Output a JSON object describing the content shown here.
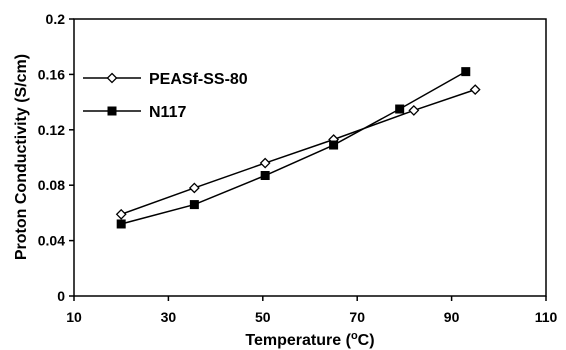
{
  "chart_data": {
    "type": "line",
    "xlabel": "Temperature (",
    "xlabel_sup": "o",
    "xlabel_tail": "C)",
    "ylabel": "Proton Conductivity (S/cm)",
    "xlim": [
      10,
      110
    ],
    "ylim": [
      0,
      0.2
    ],
    "xticks": [
      "10",
      "30",
      "50",
      "70",
      "90",
      "110"
    ],
    "yticks": [
      "0",
      "0.04",
      "0.08",
      "0.12",
      "0.16",
      "0.2"
    ],
    "grid": false,
    "legend_position": "top-left",
    "series": [
      {
        "name": "PEASf-SS-80",
        "marker": "open-diamond",
        "color": "#000000",
        "points": [
          [
            20,
            0.059
          ],
          [
            35.5,
            0.078
          ],
          [
            50.5,
            0.096
          ],
          [
            65,
            0.113
          ],
          [
            82,
            0.134
          ],
          [
            95,
            0.149
          ]
        ]
      },
      {
        "name": "N117",
        "marker": "filled-square",
        "color": "#000000",
        "points": [
          [
            20,
            0.052
          ],
          [
            35.5,
            0.066
          ],
          [
            50.5,
            0.087
          ],
          [
            65,
            0.109
          ],
          [
            79,
            0.135
          ],
          [
            93,
            0.162
          ]
        ]
      }
    ]
  }
}
